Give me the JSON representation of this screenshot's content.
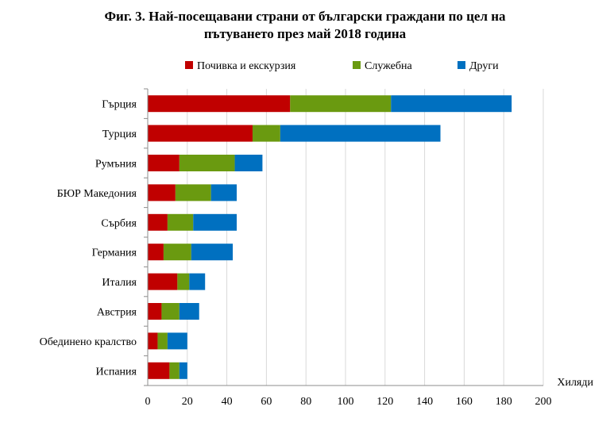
{
  "chart_data": {
    "type": "bar",
    "orientation": "horizontal",
    "stacked": true,
    "title": "Фиг. 3. Най-посещавани страни от български граждани по цел на пътуването през май 2018 година",
    "title_lines": [
      "Фиг. 3. Най-посещавани страни от български граждани по цел на",
      "пътуването през май 2018 година"
    ],
    "xlabel": "Хиляди",
    "ylabel": "",
    "xlim": [
      0,
      200
    ],
    "x_ticks": [
      0,
      20,
      40,
      60,
      80,
      100,
      120,
      140,
      160,
      180,
      200
    ],
    "grid": true,
    "legend_position": "top",
    "categories": [
      "Гърция",
      "Турция",
      "Румъния",
      "БЮР Македония",
      "Сърбия",
      "Германия",
      "Италия",
      "Австрия",
      "Обединено кралство",
      "Испания"
    ],
    "series": [
      {
        "name": "Почивка и екскурзия",
        "color": "#c00000",
        "values": [
          72,
          53,
          16,
          14,
          10,
          8,
          15,
          7,
          5,
          11
        ]
      },
      {
        "name": "Служебна",
        "color": "#6a9a10",
        "values": [
          51,
          14,
          28,
          18,
          13,
          14,
          6,
          9,
          5,
          5
        ]
      },
      {
        "name": "Други",
        "color": "#0070c0",
        "values": [
          61,
          81,
          14,
          13,
          22,
          21,
          8,
          10,
          10,
          4
        ]
      }
    ]
  }
}
